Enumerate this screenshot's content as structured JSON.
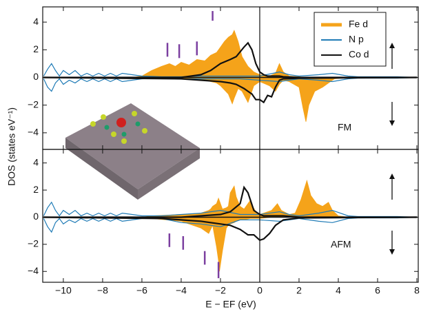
{
  "chart_data": [
    {
      "type": "dos",
      "ylabel": "DOS (states eV⁻¹)",
      "label": "FM",
      "xlim": [
        -11.05,
        8.07
      ],
      "ylim": [
        -5.2,
        5.1
      ],
      "yticks": [
        {
          "value": -4,
          "label": "−4"
        },
        {
          "value": -2,
          "label": "−2"
        },
        0,
        2,
        4
      ],
      "legend": "upper right",
      "series": [
        {
          "name": "Fe d",
          "color": "#f5a31a",
          "fill": true,
          "x": [
            -6.5,
            -6,
            -5.5,
            -5,
            -4.6,
            -4.3,
            -4,
            -3.6,
            -3.2,
            -2.8,
            -2.5,
            -2.2,
            -2,
            -1.8,
            -1.6,
            -1.4,
            -1.3,
            -1.1,
            -0.9,
            -0.6,
            -0.3,
            0,
            0.5,
            0.8,
            1,
            1.2,
            1.5,
            2,
            2.2,
            2.35,
            2.5,
            2.8,
            3.2,
            3.5,
            3.8,
            4.5,
            8
          ],
          "up": [
            0,
            0.1,
            0.5,
            0.8,
            1.0,
            0.8,
            1.1,
            0.9,
            1.3,
            1.2,
            1.6,
            1.8,
            2.2,
            2.6,
            2.9,
            3.1,
            3.4,
            2.6,
            1.5,
            0.8,
            0.4,
            0.2,
            0.1,
            0.3,
            1.0,
            0.4,
            0.1,
            0.05,
            0.02,
            0,
            0,
            0,
            0,
            0,
            0,
            0,
            0
          ],
          "down": [
            0,
            0,
            -0.05,
            -0.05,
            -0.05,
            -0.1,
            -0.1,
            -0.1,
            -0.1,
            -0.2,
            -0.3,
            -0.4,
            -0.6,
            -0.9,
            -1.2,
            -1.9,
            -1.5,
            -0.8,
            -1.0,
            -1.8,
            -0.6,
            -0.3,
            -0.6,
            -1.0,
            -0.5,
            -0.2,
            -0.3,
            -0.7,
            -2.2,
            -3.2,
            -2.0,
            -1.0,
            -0.7,
            -0.4,
            -0.1,
            0,
            0
          ]
        },
        {
          "name": "N p",
          "color": "#1f7bb6",
          "fill": false,
          "x": [
            -11,
            -10.8,
            -10.6,
            -10.4,
            -10.2,
            -10,
            -9.7,
            -9.4,
            -9.1,
            -8.8,
            -8.5,
            -8.2,
            -7.9,
            -7.6,
            -7.3,
            -7,
            -6.5,
            -6,
            -5,
            -4,
            -3,
            -2,
            -1,
            0,
            1,
            1.5,
            2,
            3,
            3.7,
            4.5,
            5,
            6,
            7,
            8
          ],
          "up": [
            0.1,
            0.6,
            1.0,
            0.5,
            0.1,
            0.5,
            0.2,
            0.5,
            0.1,
            0.3,
            0.1,
            0.3,
            0.1,
            0.3,
            0.1,
            0.3,
            0.2,
            0.1,
            0.05,
            0.05,
            0.1,
            0.1,
            0.1,
            0.1,
            0.4,
            0.2,
            0.1,
            0.2,
            0.3,
            0.1,
            0.05,
            0.05,
            0.05,
            0
          ],
          "down": [
            -0.1,
            -0.7,
            -1.0,
            -0.4,
            -0.1,
            -0.5,
            -0.2,
            -0.4,
            -0.1,
            -0.3,
            -0.1,
            -0.3,
            -0.1,
            -0.3,
            -0.1,
            -0.3,
            -0.2,
            -0.1,
            -0.05,
            -0.1,
            -0.1,
            -0.1,
            -0.1,
            -0.2,
            -0.3,
            -0.2,
            -0.1,
            -0.2,
            -0.3,
            -0.1,
            -0.05,
            -0.05,
            -0.05,
            0
          ]
        },
        {
          "name": "Co d",
          "color": "#111111",
          "fill": false,
          "x": [
            -11,
            -4,
            -3,
            -2.5,
            -2,
            -1.5,
            -1.2,
            -0.8,
            -0.6,
            -0.4,
            -0.2,
            0,
            0.2,
            0.4,
            0.6,
            0.8,
            1,
            1.2,
            2,
            8
          ],
          "up": [
            0,
            0,
            0.2,
            0.5,
            1.0,
            1.3,
            1.5,
            2.2,
            2.5,
            2.0,
            1.0,
            0.4,
            0.2,
            0.1,
            0.1,
            0.1,
            0.1,
            0.05,
            0,
            0
          ],
          "down": [
            0,
            -0.1,
            -0.2,
            -0.25,
            -0.3,
            -0.4,
            -0.5,
            -0.8,
            -1.0,
            -1.2,
            -1.6,
            -1.6,
            -1.8,
            -1.3,
            -1.4,
            -0.7,
            -0.2,
            -0.1,
            -0.05,
            0
          ]
        }
      ],
      "markers": {
        "color": "#7b3fa0",
        "items": [
          {
            "x": -4.7,
            "y": [
              1.5,
              2.5
            ]
          },
          {
            "x": -4.1,
            "y": [
              1.4,
              2.4
            ]
          },
          {
            "x": -3.2,
            "y": [
              1.6,
              2.6
            ]
          },
          {
            "x": -2.4,
            "y": [
              4.1,
              4.8
            ]
          }
        ]
      }
    },
    {
      "type": "dos",
      "label": "AFM",
      "xlabel": "E − EF (eV)",
      "xlim": [
        -11.05,
        8.07
      ],
      "ylim": [
        -4.8,
        5.0
      ],
      "xticks": [
        {
          "value": -10,
          "label": "−10"
        },
        {
          "value": -8,
          "label": "−8"
        },
        {
          "value": -6,
          "label": "−6"
        },
        {
          "value": -4,
          "label": "−4"
        },
        {
          "value": -2,
          "label": "−2"
        },
        0,
        2,
        4,
        6,
        8
      ],
      "yticks": [
        {
          "value": -4,
          "label": "−4"
        },
        {
          "value": -2,
          "label": "−2"
        },
        0,
        2,
        4
      ],
      "series": [
        {
          "color": "#f5a31a",
          "fill": true,
          "x": [
            -6,
            -5.5,
            -4,
            -3,
            -2.6,
            -2.5,
            -2.4,
            -2.2,
            -2.1,
            -2.05,
            -1.9,
            -1.7,
            -1.6,
            -1.5,
            -1.3,
            -1.2,
            -1,
            -0.8,
            -0.5,
            -0.4,
            -0.2,
            0,
            0.6,
            0.9,
            1.1,
            1.5,
            1.8,
            2.1,
            2.4,
            2.6,
            2.9,
            3.2,
            3.5,
            3.7,
            4,
            4.5,
            8
          ],
          "up": [
            0,
            0.1,
            0.2,
            0.3,
            0.5,
            0.6,
            0.8,
            1.0,
            1.4,
            1.2,
            0.6,
            0.7,
            0.8,
            1.8,
            2.3,
            1.5,
            0.8,
            0.6,
            1.2,
            0.9,
            0.4,
            0.2,
            0.5,
            1.0,
            0.5,
            0.2,
            0.3,
            1.3,
            2.7,
            1.6,
            1.0,
            0.8,
            1.1,
            0.5,
            0.1,
            0,
            0
          ],
          "down": [
            0,
            -0.1,
            -0.3,
            -0.8,
            -1.2,
            -0.9,
            -0.6,
            -2.2,
            -3.2,
            -4.0,
            -2.5,
            -0.8,
            -0.6,
            -0.5,
            -0.4,
            -0.3,
            -0.2,
            -0.2,
            -0.1,
            -0.1,
            -0.1,
            -0.1,
            0,
            0,
            0,
            0,
            0,
            0,
            0,
            0,
            0,
            0,
            0,
            0,
            0,
            0,
            0
          ]
        },
        {
          "color": "#1f7bb6",
          "fill": false,
          "x": [
            -11,
            -10.8,
            -10.6,
            -10.4,
            -10.2,
            -10,
            -9.7,
            -9.4,
            -9.1,
            -8.8,
            -8.5,
            -8.2,
            -7.9,
            -7.6,
            -7.3,
            -7,
            -6.5,
            -6,
            -5,
            -4,
            -3,
            -2,
            -1,
            0,
            1,
            1.5,
            2,
            3,
            3.7,
            4.5,
            5,
            6,
            7,
            8
          ],
          "up": [
            0.1,
            0.7,
            1.1,
            0.5,
            0.1,
            0.5,
            0.2,
            0.5,
            0.1,
            0.3,
            0.1,
            0.3,
            0.1,
            0.3,
            0.1,
            0.3,
            0.2,
            0.1,
            0.1,
            0.2,
            0.3,
            0.5,
            0.2,
            0.2,
            0.4,
            0.2,
            0.1,
            0.3,
            0.5,
            0.1,
            0.05,
            0.05,
            0.05,
            0
          ],
          "down": [
            -0.1,
            -0.7,
            -1.1,
            -0.4,
            -0.1,
            -0.5,
            -0.2,
            -0.4,
            -0.1,
            -0.3,
            -0.1,
            -0.3,
            -0.1,
            -0.3,
            -0.1,
            -0.3,
            -0.2,
            -0.1,
            -0.1,
            -0.4,
            -0.5,
            -0.7,
            -0.2,
            -0.2,
            -0.3,
            -0.2,
            -0.1,
            -0.3,
            -0.4,
            -0.1,
            -0.05,
            -0.05,
            -0.05,
            0
          ]
        },
        {
          "color": "#111111",
          "fill": false,
          "x": [
            -11,
            -5,
            -4,
            -3,
            -2,
            -1.5,
            -1,
            -0.8,
            -0.6,
            -0.3,
            0,
            0.2,
            0.5,
            0.8,
            1.2,
            2,
            8
          ],
          "up": [
            0,
            0,
            0,
            0.1,
            0.2,
            0.4,
            1.0,
            2.2,
            1.8,
            0.5,
            0.2,
            0.1,
            0.1,
            0.1,
            0.1,
            0,
            0
          ],
          "down": [
            0,
            -0.1,
            -0.2,
            -0.3,
            -0.5,
            -0.6,
            -0.9,
            -1.1,
            -1.3,
            -1.3,
            -1.7,
            -1.6,
            -1.2,
            -0.6,
            -0.2,
            -0.05,
            0
          ]
        }
      ],
      "markers": {
        "color": "#7b3fa0",
        "items": [
          {
            "x": -4.6,
            "y": [
              -1.2,
              -2.2
            ]
          },
          {
            "x": -3.9,
            "y": [
              -1.4,
              -2.4
            ]
          },
          {
            "x": -2.8,
            "y": [
              -2.5,
              -3.5
            ]
          },
          {
            "x": -2.1,
            "y": [
              -3.3,
              -4.5
            ]
          }
        ]
      }
    }
  ]
}
